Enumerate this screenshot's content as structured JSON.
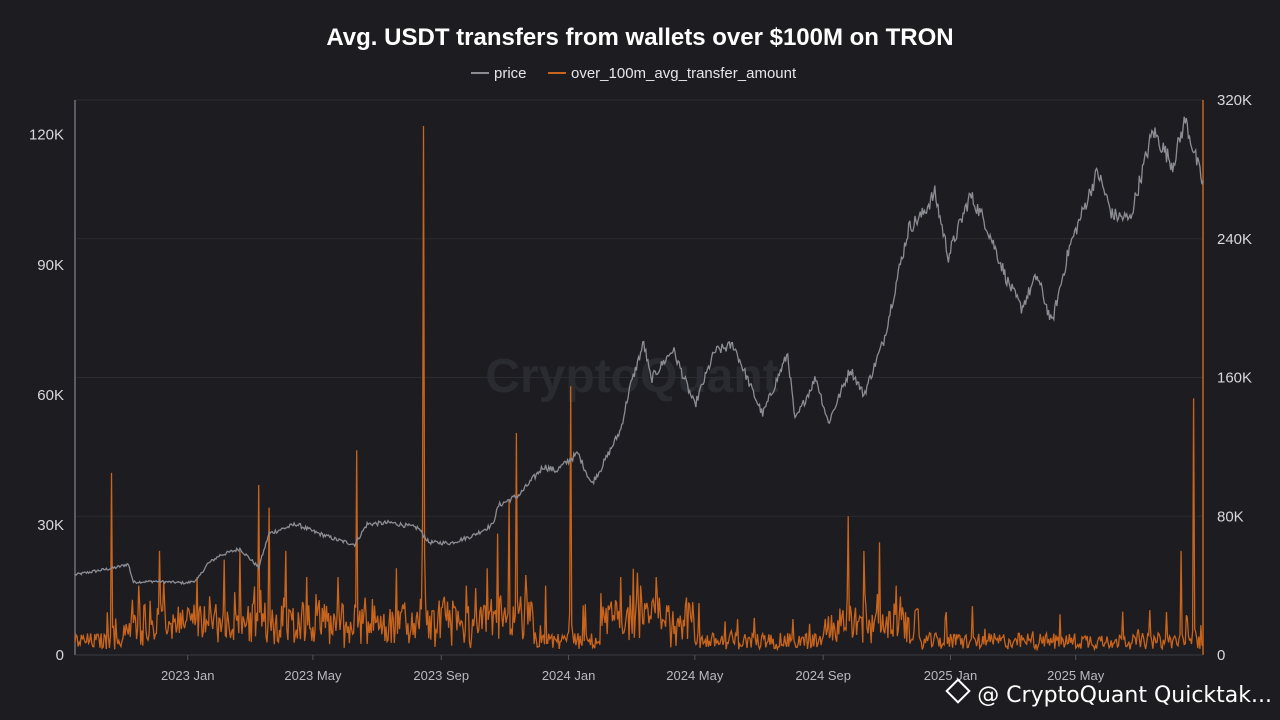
{
  "chart_data": {
    "type": "line",
    "title": "Avg. USDT transfers from wallets over $100M on TRON",
    "legend": {
      "placement": "top-center",
      "entries": [
        "price",
        "over_100m_avg_transfer_amount"
      ]
    },
    "x_ticks": [
      "2023 Jan",
      "2023 May",
      "2023 Sep",
      "2024 Jan",
      "2024 May",
      "2024 Sep",
      "2025 Jan",
      "2025 May"
    ],
    "x_range": [
      "2022-09-15",
      "2025-08-31"
    ],
    "y_left": {
      "ticks": [
        "0",
        "30K",
        "60K",
        "90K",
        "120K"
      ],
      "range": [
        0,
        128000
      ]
    },
    "y_right": {
      "ticks": [
        "0",
        "80K",
        "160K",
        "240K",
        "320K"
      ],
      "range": [
        0,
        320000
      ]
    },
    "grid": true,
    "series": [
      {
        "name": "price",
        "axis": "left",
        "color": "#8c8c94",
        "points": [
          [
            "2022-09-15",
            18500
          ],
          [
            "2022-10-01",
            19200
          ],
          [
            "2022-10-25",
            20200
          ],
          [
            "2022-11-05",
            21000
          ],
          [
            "2022-11-10",
            16800
          ],
          [
            "2022-12-01",
            17000
          ],
          [
            "2022-12-31",
            16600
          ],
          [
            "2023-01-10",
            17300
          ],
          [
            "2023-01-20",
            21000
          ],
          [
            "2023-02-01",
            23000
          ],
          [
            "2023-02-20",
            24500
          ],
          [
            "2023-03-10",
            20200
          ],
          [
            "2023-03-20",
            28000
          ],
          [
            "2023-04-15",
            30200
          ],
          [
            "2023-05-01",
            28500
          ],
          [
            "2023-05-25",
            26500
          ],
          [
            "2023-06-10",
            25500
          ],
          [
            "2023-06-22",
            30200
          ],
          [
            "2023-07-15",
            30500
          ],
          [
            "2023-08-10",
            29300
          ],
          [
            "2023-08-20",
            26000
          ],
          [
            "2023-09-10",
            25800
          ],
          [
            "2023-10-01",
            27500
          ],
          [
            "2023-10-20",
            30000
          ],
          [
            "2023-10-26",
            34500
          ],
          [
            "2023-11-15",
            37000
          ],
          [
            "2023-12-08",
            43500
          ],
          [
            "2023-12-20",
            42500
          ],
          [
            "2024-01-10",
            46500
          ],
          [
            "2024-01-23",
            39500
          ],
          [
            "2024-02-01",
            43000
          ],
          [
            "2024-02-20",
            52000
          ],
          [
            "2024-02-28",
            61000
          ],
          [
            "2024-03-13",
            72000
          ],
          [
            "2024-03-20",
            63500
          ],
          [
            "2024-04-10",
            70500
          ],
          [
            "2024-05-01",
            57500
          ],
          [
            "2024-05-20",
            70000
          ],
          [
            "2024-06-07",
            71500
          ],
          [
            "2024-06-25",
            61000
          ],
          [
            "2024-07-05",
            55500
          ],
          [
            "2024-07-29",
            69500
          ],
          [
            "2024-08-05",
            54000
          ],
          [
            "2024-08-25",
            64000
          ],
          [
            "2024-09-06",
            53500
          ],
          [
            "2024-09-27",
            66000
          ],
          [
            "2024-10-10",
            60000
          ],
          [
            "2024-10-29",
            72500
          ],
          [
            "2024-11-12",
            88000
          ],
          [
            "2024-11-22",
            98500
          ],
          [
            "2024-12-05",
            101500
          ],
          [
            "2024-12-17",
            106500
          ],
          [
            "2024-12-30",
            92000
          ],
          [
            "2025-01-20",
            106000
          ],
          [
            "2025-02-03",
            100000
          ],
          [
            "2025-02-25",
            86000
          ],
          [
            "2025-03-10",
            80000
          ],
          [
            "2025-03-25",
            87500
          ],
          [
            "2025-04-08",
            76500
          ],
          [
            "2025-04-25",
            94000
          ],
          [
            "2025-05-22",
            111500
          ],
          [
            "2025-06-05",
            101500
          ],
          [
            "2025-06-22",
            100500
          ],
          [
            "2025-07-14",
            121000
          ],
          [
            "2025-08-02",
            113000
          ],
          [
            "2025-08-14",
            123500
          ],
          [
            "2025-08-31",
            108500
          ]
        ]
      },
      {
        "name": "over_100m_avg_transfer_amount",
        "axis": "right",
        "color": "#c8641c",
        "baseline": 8000,
        "spikes": [
          [
            "2022-10-20",
            105000
          ],
          [
            "2022-11-15",
            40000
          ],
          [
            "2022-12-05",
            60000
          ],
          [
            "2023-01-10",
            45000
          ],
          [
            "2023-02-05",
            55000
          ],
          [
            "2023-02-20",
            60000
          ],
          [
            "2023-03-10",
            98000
          ],
          [
            "2023-03-20",
            85000
          ],
          [
            "2023-04-05",
            60000
          ],
          [
            "2023-04-25",
            45000
          ],
          [
            "2023-05-25",
            45000
          ],
          [
            "2023-06-12",
            118000
          ],
          [
            "2023-07-20",
            50000
          ],
          [
            "2023-08-15",
            305000
          ],
          [
            "2023-09-25",
            40000
          ],
          [
            "2023-10-15",
            50000
          ],
          [
            "2023-10-25",
            70000
          ],
          [
            "2023-11-05",
            90000
          ],
          [
            "2023-11-12",
            128000
          ],
          [
            "2023-12-10",
            40000
          ],
          [
            "2024-01-03",
            155000
          ],
          [
            "2024-02-20",
            45000
          ],
          [
            "2024-03-10",
            40000
          ],
          [
            "2024-03-25",
            45000
          ],
          [
            "2024-05-05",
            30000
          ],
          [
            "2024-09-25",
            80000
          ],
          [
            "2024-10-10",
            60000
          ],
          [
            "2024-10-25",
            65000
          ],
          [
            "2024-11-10",
            40000
          ],
          [
            "2025-06-15",
            25000
          ],
          [
            "2025-08-10",
            60000
          ],
          [
            "2025-08-22",
            148000
          ]
        ]
      }
    ],
    "watermark": "CryptoQuant"
  },
  "credit": {
    "handle": "@ CryptoQuant Quicktak..."
  }
}
